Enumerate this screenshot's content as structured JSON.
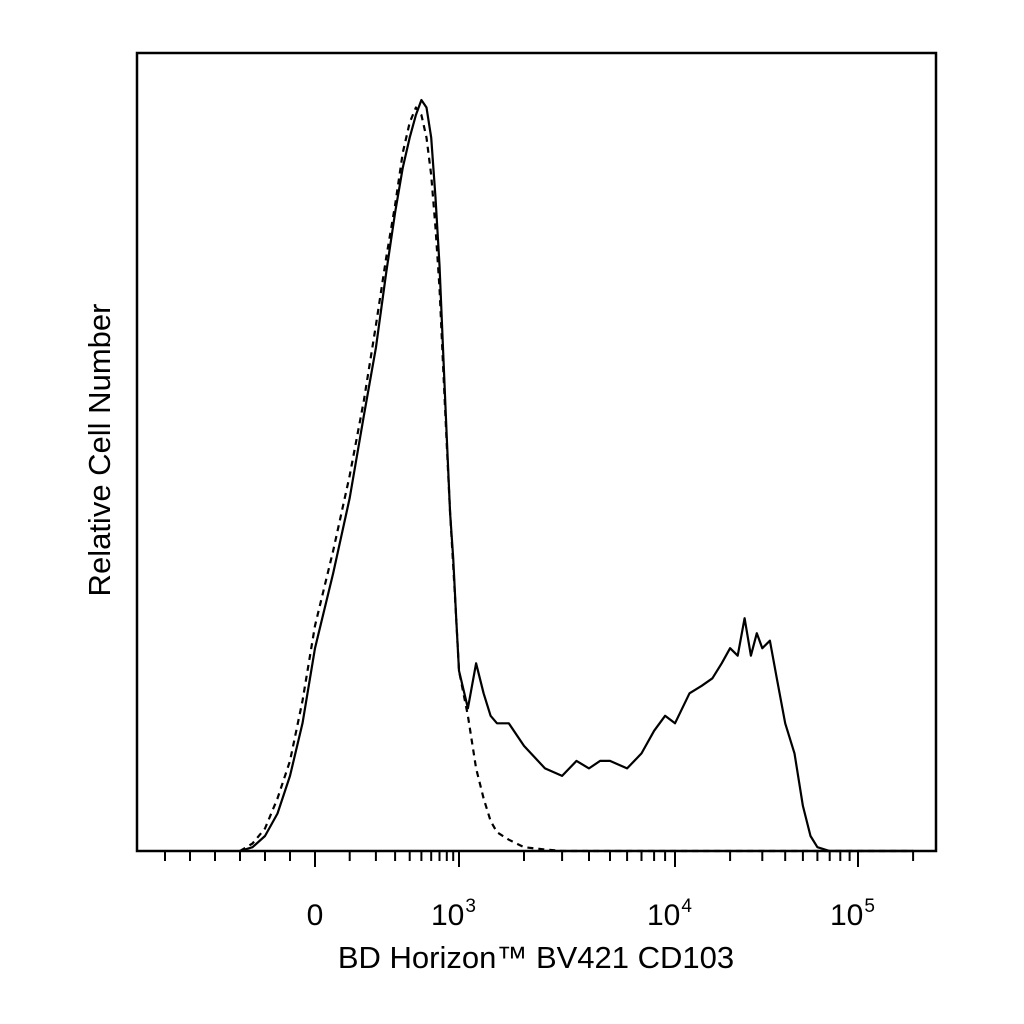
{
  "chart_data": {
    "type": "line",
    "title": "",
    "xlabel": "BD Horizon™ BV421 CD103",
    "ylabel": "Relative Cell Number",
    "x_scale": "biexponential",
    "xlim": [
      -500,
      260000
    ],
    "ylim": [
      0,
      100
    ],
    "grid": false,
    "legend": "none",
    "x_ticks": [
      {
        "value": 0,
        "base": "0",
        "exp": ""
      },
      {
        "value": 1000,
        "base": "10",
        "exp": "3"
      },
      {
        "value": 10000,
        "base": "10",
        "exp": "4"
      },
      {
        "value": 100000,
        "base": "10",
        "exp": "5"
      }
    ],
    "series": [
      {
        "style": "solid",
        "color": "#000000",
        "x": [
          -300,
          -250,
          -200,
          -150,
          -100,
          -50,
          0,
          50,
          100,
          150,
          200,
          250,
          300,
          350,
          400,
          450,
          500,
          550,
          600,
          650,
          700,
          750,
          800,
          850,
          900,
          950,
          1000,
          1100,
          1200,
          1300,
          1400,
          1500,
          1700,
          2000,
          2500,
          3000,
          3500,
          4000,
          4500,
          5000,
          6000,
          7000,
          8000,
          9000,
          10000,
          12000,
          14000,
          16000,
          18000,
          20000,
          22000,
          24000,
          26000,
          28000,
          30000,
          33000,
          36000,
          40000,
          45000,
          50000,
          55000,
          60000,
          70000,
          80000,
          90000,
          100000,
          120000,
          150000,
          200000
        ],
        "values": [
          0,
          0.5,
          2,
          5,
          10,
          17,
          27,
          37,
          47,
          58,
          67,
          77,
          85,
          91,
          95,
          98,
          100,
          99,
          95,
          87,
          78,
          66,
          55,
          45,
          39,
          31,
          24,
          19,
          25,
          21,
          18,
          17,
          17,
          14,
          11,
          10,
          12,
          11,
          12,
          12,
          11,
          13,
          16,
          18,
          17,
          21,
          22,
          23,
          25,
          27,
          26,
          31,
          26,
          29,
          27,
          28,
          23,
          17,
          13,
          6,
          2,
          0.5,
          0,
          0,
          0,
          0,
          0,
          0,
          0
        ]
      },
      {
        "style": "dashed",
        "color": "#000000",
        "x": [
          -300,
          -250,
          -200,
          -150,
          -100,
          -50,
          0,
          50,
          100,
          150,
          200,
          250,
          300,
          350,
          400,
          450,
          500,
          550,
          600,
          650,
          700,
          750,
          800,
          850,
          900,
          950,
          1000,
          1100,
          1200,
          1300,
          1400,
          1500,
          1700,
          2000,
          2500,
          3000,
          3500,
          4000,
          5000,
          7000,
          10000,
          20000,
          50000,
          100000,
          200000
        ],
        "values": [
          0,
          1,
          3,
          7,
          12,
          20,
          30,
          40,
          50,
          60,
          70,
          79,
          86,
          93,
          97,
          99,
          98,
          95,
          90,
          83,
          75,
          64,
          54,
          45,
          38,
          31,
          24,
          18,
          11,
          7,
          4,
          2.5,
          1.5,
          0.5,
          0.2,
          0,
          0,
          0,
          0,
          0,
          0,
          0,
          0,
          0,
          0
        ]
      }
    ]
  }
}
